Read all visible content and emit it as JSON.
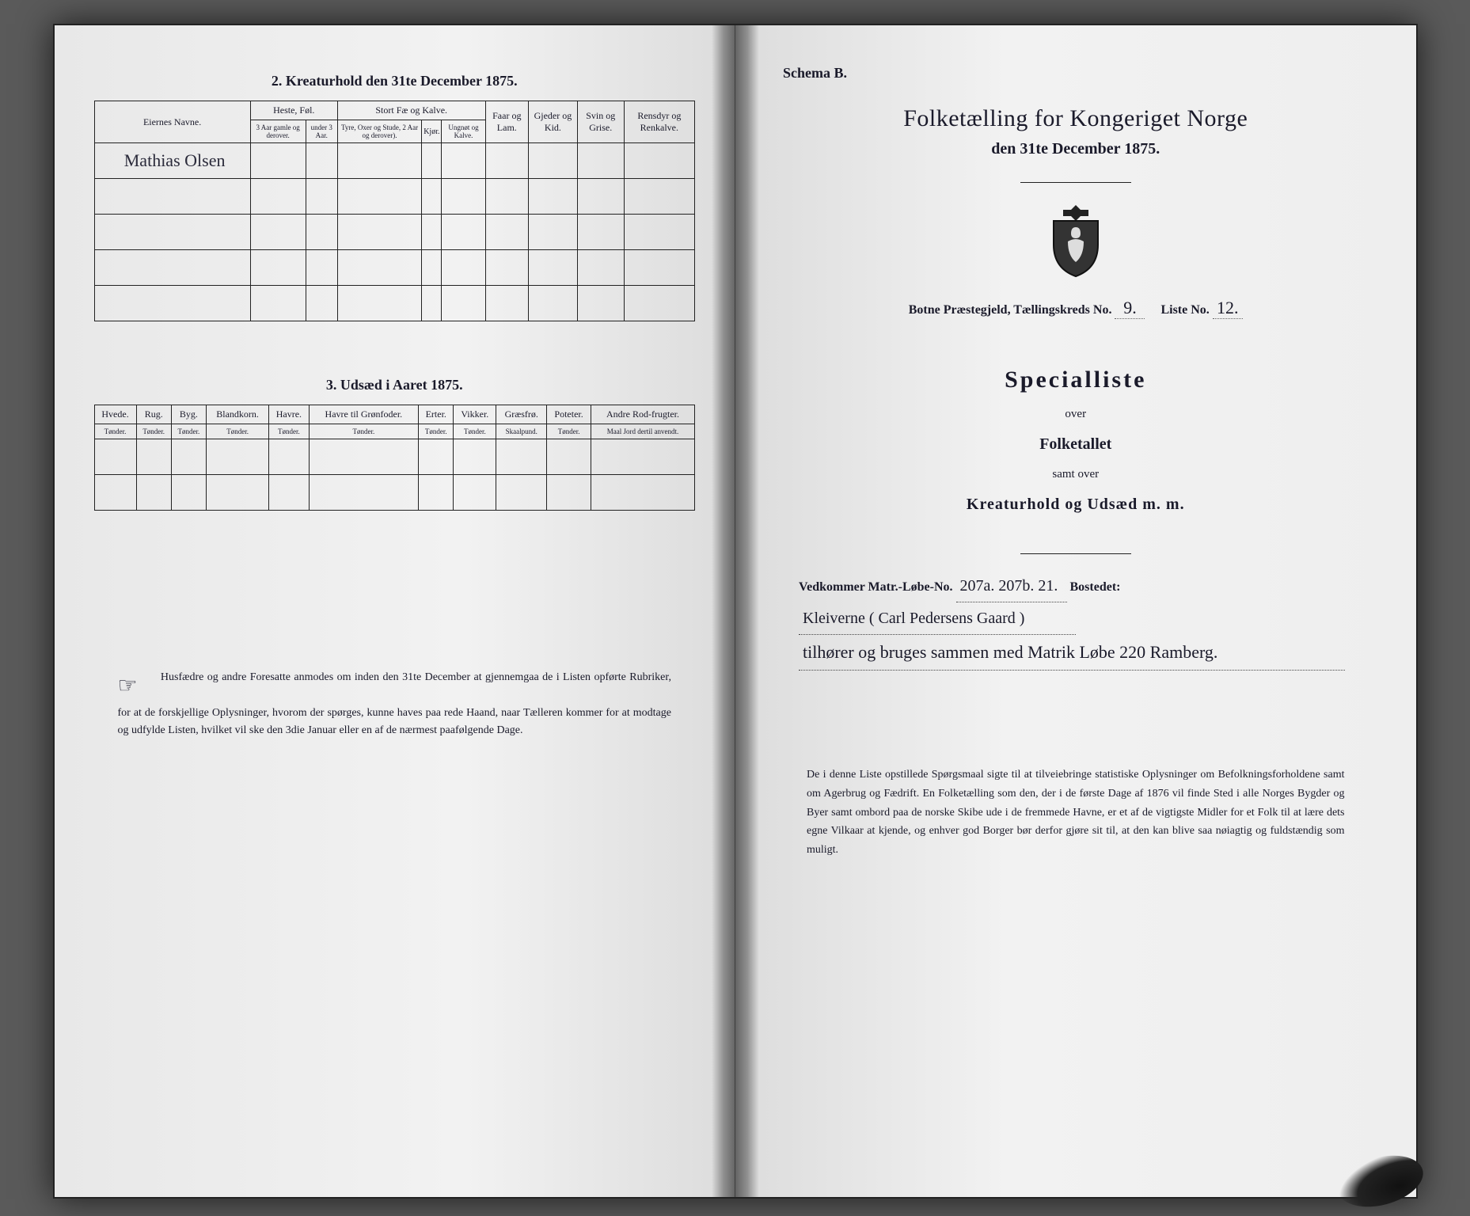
{
  "left": {
    "section2_title": "2.  Kreaturhold den 31te December 1875.",
    "table2": {
      "owner_header": "Eiernes Navne.",
      "heste_group": "Heste, Føl.",
      "heste_a": "3 Aar gamle og derover.",
      "heste_b": "under 3 Aar.",
      "stort_group": "Stort Fæ og Kalve.",
      "stort_a": "Tyre, Oxer og Stude, 2 Aar og derover).",
      "stort_b": "Kjør.",
      "stort_c": "Ungnøt og Kalve.",
      "faar": "Faar og Lam.",
      "gjeder": "Gjeder og Kid.",
      "svin": "Svin og Grise.",
      "rensdyr": "Rensdyr og Renkalve.",
      "owner_value": "Mathias Olsen"
    },
    "section3_title": "3.  Udsæd i Aaret 1875.",
    "table3": {
      "cols": [
        {
          "h": "Hvede.",
          "u": "Tønder."
        },
        {
          "h": "Rug.",
          "u": "Tønder."
        },
        {
          "h": "Byg.",
          "u": "Tønder."
        },
        {
          "h": "Blandkorn.",
          "u": "Tønder."
        },
        {
          "h": "Havre.",
          "u": "Tønder."
        },
        {
          "h": "Havre til Grønfoder.",
          "u": "Tønder."
        },
        {
          "h": "Erter.",
          "u": "Tønder."
        },
        {
          "h": "Vikker.",
          "u": "Tønder."
        },
        {
          "h": "Græsfrø.",
          "u": "Skaalpund."
        },
        {
          "h": "Poteter.",
          "u": "Tønder."
        },
        {
          "h": "Andre Rod-frugter.",
          "u": "Maal Jord dertil anvendt."
        }
      ]
    },
    "footnote": "Husfædre og andre Foresatte anmodes om inden den 31te December at gjennemgaa de i Listen opførte Rubriker, for at de forskjellige Oplysninger, hvorom der spørges, kunne haves paa rede Haand, naar Tælleren kommer for at modtage og udfylde Listen, hvilket vil ske den 3die Januar eller en af de nærmest paafølgende Dage."
  },
  "right": {
    "schema": "Schema B.",
    "main_title": "Folketælling for Kongeriget Norge",
    "sub_title": "den 31te December 1875.",
    "meta": {
      "prestegjeld_label": "Botne Præstegjeld, Tællingskreds No.",
      "kreds_no": "9.",
      "liste_label": "Liste No.",
      "liste_no": "12."
    },
    "spec_title": "Specialliste",
    "spec_over": "over",
    "spec_folketallet": "Folketallet",
    "spec_samt": "samt over",
    "spec_line": "Kreaturhold og Udsæd m. m.",
    "ved": {
      "label1": "Vedkommer Matr.-Løbe-No.",
      "matr": "207a. 207b. 21.",
      "label2": "Bostedet:",
      "bosted": "Kleiverne  ( Carl Pedersens Gaard )",
      "line2": "tilhører og bruges sammen med Matrik Løbe 220 Ramberg."
    },
    "footnote": "De i denne Liste opstillede Spørgsmaal sigte til at tilveiebringe statistiske Oplysninger om Befolkningsforholdene samt om Agerbrug og Fædrift.  En Folketælling som den, der i de første Dage af 1876 vil finde Sted i alle Norges Bygder og Byer samt ombord paa de norske Skibe ude i de fremmede Havne, er et af de vigtigste Midler for et Folk til at lære dets egne Vilkaar at kjende, og enhver god Borger bør derfor gjøre sit til, at den kan blive saa nøiagtig og fuldstændig som muligt."
  }
}
